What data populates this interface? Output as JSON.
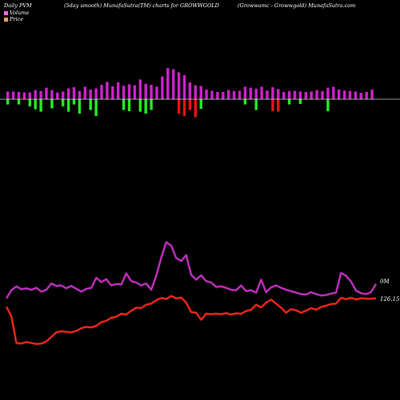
{
  "header": {
    "left": "Daily PVM",
    "center": "(5day smooth) MunafaSutra(TM) charts for GROWWGOLD",
    "right": "(Growwamc - Growwgold) MunafaSutra.com"
  },
  "colors": {
    "background": "#000000",
    "volume_line": "#cc33cc",
    "price_line": "#ff2a1a",
    "bar_up": "#cc22cc",
    "bar_down_green": "#22ee22",
    "bar_down_red": "#ee1111"
  },
  "chart_data": {
    "type": "line",
    "legend": {
      "position": "top-left"
    },
    "series": [
      {
        "name": "Volume",
        "color": "#cc33cc",
        "end_label": "0M",
        "values": [
          0.45,
          0.62,
          0.7,
          0.64,
          0.66,
          0.63,
          0.67,
          0.59,
          0.63,
          0.76,
          0.71,
          0.72,
          0.66,
          0.71,
          0.65,
          0.59,
          0.65,
          0.67,
          0.88,
          0.79,
          0.85,
          0.72,
          0.75,
          0.74,
          0.97,
          0.81,
          0.78,
          0.72,
          0.76,
          0.63,
          0.92,
          1.3,
          1.62,
          1.55,
          1.29,
          1.23,
          1.35,
          0.94,
          0.84,
          0.93,
          0.81,
          0.78,
          0.69,
          0.7,
          0.67,
          0.63,
          0.62,
          0.72,
          0.6,
          0.62,
          0.57,
          0.84,
          0.58,
          0.68,
          0.72,
          0.67,
          0.63,
          0.6,
          0.57,
          0.54,
          0.53,
          0.58,
          0.54,
          0.51,
          0.52,
          0.55,
          0.57,
          0.98,
          0.92,
          0.8,
          0.61,
          0.56,
          0.54,
          0.58,
          0.75
        ]
      },
      {
        "name": "Price",
        "color": "#ff2a1a",
        "end_label": "126.15",
        "values": [
          122.5,
          117.8,
          104.5,
          104.2,
          105.0,
          104.5,
          104.0,
          104.2,
          105.3,
          107.5,
          109.8,
          110.3,
          110.0,
          109.8,
          110.5,
          111.8,
          112.5,
          112.2,
          113.0,
          114.8,
          115.5,
          117.0,
          117.5,
          119.0,
          118.6,
          120.5,
          122.0,
          121.8,
          123.5,
          124.0,
          125.7,
          126.8,
          126.3,
          127.8,
          126.6,
          127.0,
          124.5,
          119.8,
          119.5,
          116.0,
          119.0,
          118.8,
          119.0,
          118.8,
          119.3,
          118.6,
          119.2,
          119.0,
          120.3,
          121.0,
          123.5,
          122.1,
          124.5,
          126.0,
          124.0,
          122.0,
          119.5,
          121.3,
          120.7,
          119.5,
          120.5,
          121.8,
          121.0,
          122.3,
          123.0,
          123.8,
          124.0,
          126.9,
          126.2,
          126.9,
          126.0,
          126.7,
          126.5,
          126.4,
          126.6
        ]
      }
    ],
    "pvm_bars": [
      {
        "up": 0.32,
        "down": 0.22,
        "down_color": "green"
      },
      {
        "up": 0.32,
        "down": 0.0,
        "down_color": "green"
      },
      {
        "up": 0.3,
        "down": 0.22,
        "down_color": "green"
      },
      {
        "up": 0.28,
        "down": 0.0,
        "down_color": "green"
      },
      {
        "up": 0.28,
        "down": 0.3,
        "down_color": "green"
      },
      {
        "up": 0.38,
        "down": 0.42,
        "down_color": "green"
      },
      {
        "up": 0.34,
        "down": 0.52,
        "down_color": "green"
      },
      {
        "up": 0.48,
        "down": 0.0,
        "down_color": "green"
      },
      {
        "up": 0.38,
        "down": 0.38,
        "down_color": "green"
      },
      {
        "up": 0.28,
        "down": 0.0,
        "down_color": "green"
      },
      {
        "up": 0.32,
        "down": 0.3,
        "down_color": "green"
      },
      {
        "up": 0.45,
        "down": 0.52,
        "down_color": "green"
      },
      {
        "up": 0.5,
        "down": 0.22,
        "down_color": "green"
      },
      {
        "up": 0.34,
        "down": 0.6,
        "down_color": "green"
      },
      {
        "up": 0.52,
        "down": 0.0,
        "down_color": "green"
      },
      {
        "up": 0.4,
        "down": 0.45,
        "down_color": "green"
      },
      {
        "up": 0.45,
        "down": 0.7,
        "down_color": "green"
      },
      {
        "up": 0.6,
        "down": 0.0,
        "down_color": "green"
      },
      {
        "up": 0.72,
        "down": 0.0,
        "down_color": "green"
      },
      {
        "up": 0.54,
        "down": 0.0,
        "down_color": "green"
      },
      {
        "up": 0.7,
        "down": 0.0,
        "down_color": "green"
      },
      {
        "up": 0.56,
        "down": 0.45,
        "down_color": "green"
      },
      {
        "up": 0.62,
        "down": 0.5,
        "down_color": "green"
      },
      {
        "up": 0.58,
        "down": 0.0,
        "down_color": "green"
      },
      {
        "up": 0.82,
        "down": 0.52,
        "down_color": "green"
      },
      {
        "up": 0.64,
        "down": 0.6,
        "down_color": "green"
      },
      {
        "up": 0.6,
        "down": 0.45,
        "down_color": "green"
      },
      {
        "up": 0.52,
        "down": 0.0,
        "down_color": "green"
      },
      {
        "up": 0.95,
        "down": 0.0,
        "down_color": "green"
      },
      {
        "up": 1.3,
        "down": 0.0,
        "down_color": "green"
      },
      {
        "up": 1.25,
        "down": 0.0,
        "down_color": "green"
      },
      {
        "up": 1.12,
        "down": 0.6,
        "down_color": "red"
      },
      {
        "up": 1.0,
        "down": 0.7,
        "down_color": "red"
      },
      {
        "up": 0.7,
        "down": 0.45,
        "down_color": "red"
      },
      {
        "up": 0.58,
        "down": 0.75,
        "down_color": "red"
      },
      {
        "up": 0.55,
        "down": 0.4,
        "down_color": "green"
      },
      {
        "up": 0.4,
        "down": 0.0,
        "down_color": "green"
      },
      {
        "up": 0.35,
        "down": 0.0,
        "down_color": "green"
      },
      {
        "up": 0.3,
        "down": 0.0,
        "down_color": "green"
      },
      {
        "up": 0.3,
        "down": 0.0,
        "down_color": "green"
      },
      {
        "up": 0.38,
        "down": 0.0,
        "down_color": "green"
      },
      {
        "up": 0.34,
        "down": 0.0,
        "down_color": "green"
      },
      {
        "up": 0.35,
        "down": 0.0,
        "down_color": "green"
      },
      {
        "up": 0.52,
        "down": 0.22,
        "down_color": "green"
      },
      {
        "up": 0.48,
        "down": 0.0,
        "down_color": "green"
      },
      {
        "up": 0.44,
        "down": 0.45,
        "down_color": "green"
      },
      {
        "up": 0.52,
        "down": 0.0,
        "down_color": "green"
      },
      {
        "up": 0.36,
        "down": 0.0,
        "down_color": "green"
      },
      {
        "up": 0.5,
        "down": 0.5,
        "down_color": "red"
      },
      {
        "up": 0.42,
        "down": 0.52,
        "down_color": "red"
      },
      {
        "up": 0.3,
        "down": 0.0,
        "down_color": "green"
      },
      {
        "up": 0.34,
        "down": 0.22,
        "down_color": "green"
      },
      {
        "up": 0.35,
        "down": 0.0,
        "down_color": "green"
      },
      {
        "up": 0.32,
        "down": 0.2,
        "down_color": "green"
      },
      {
        "up": 0.3,
        "down": 0.0,
        "down_color": "green"
      },
      {
        "up": 0.32,
        "down": 0.0,
        "down_color": "green"
      },
      {
        "up": 0.38,
        "down": 0.0,
        "down_color": "green"
      },
      {
        "up": 0.34,
        "down": 0.0,
        "down_color": "green"
      },
      {
        "up": 0.48,
        "down": 0.5,
        "down_color": "green"
      },
      {
        "up": 0.52,
        "down": 0.0,
        "down_color": "green"
      },
      {
        "up": 0.4,
        "down": 0.0,
        "down_color": "green"
      },
      {
        "up": 0.36,
        "down": 0.0,
        "down_color": "green"
      },
      {
        "up": 0.34,
        "down": 0.0,
        "down_color": "green"
      },
      {
        "up": 0.32,
        "down": 0.0,
        "down_color": "green"
      },
      {
        "up": 0.26,
        "down": 0.0,
        "down_color": "green"
      },
      {
        "up": 0.3,
        "down": 0.0,
        "down_color": "green"
      },
      {
        "up": 0.4,
        "down": 0.0,
        "down_color": "green"
      }
    ],
    "xlabel": "",
    "ylabel": ""
  }
}
